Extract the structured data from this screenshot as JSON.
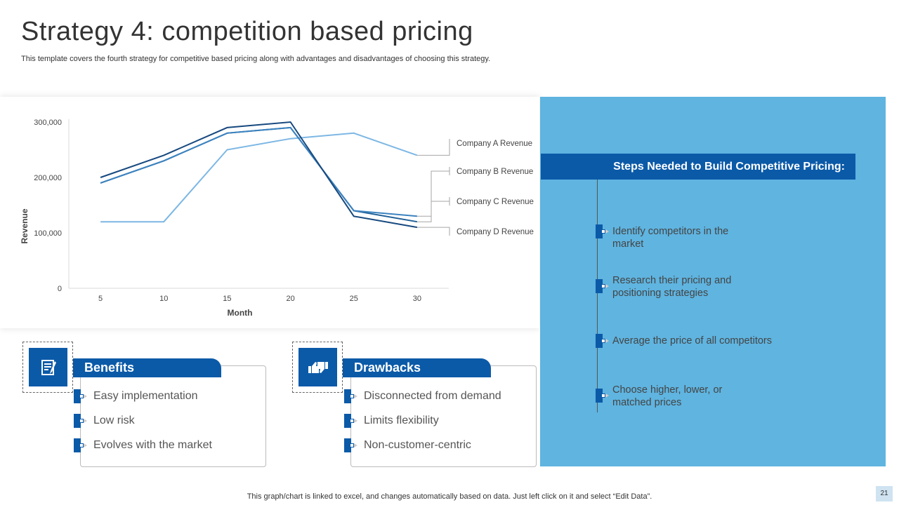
{
  "header": {
    "title": "Strategy 4: competition based pricing",
    "subtitle": "This template covers the fourth strategy for competitive based pricing along with advantages and disadvantages of choosing this strategy."
  },
  "chart_data": {
    "type": "line",
    "x": [
      5,
      10,
      15,
      20,
      25,
      30
    ],
    "xlabel": "Month",
    "ylabel": "Revenue",
    "ylim": [
      0,
      300000
    ],
    "yticks": [
      0,
      100000,
      200000,
      300000
    ],
    "ytick_labels": [
      "0",
      "100,000",
      "200,000",
      "300,000"
    ],
    "xtick_labels": [
      "5",
      "10",
      "15",
      "20",
      "25",
      "30"
    ],
    "grid": false,
    "legend_position": "right",
    "series": [
      {
        "name": "Company A Revenue",
        "values": [
          120000,
          120000,
          250000,
          270000,
          280000,
          240000
        ],
        "color": "#7db7e4"
      },
      {
        "name": "Company B Revenue",
        "values": [
          190000,
          230000,
          280000,
          290000,
          140000,
          120000
        ],
        "color": "#1f5f97"
      },
      {
        "name": "Company C Revenue",
        "values": [
          190000,
          230000,
          280000,
          290000,
          140000,
          130000
        ],
        "color": "#3c83c0"
      },
      {
        "name": "Company D Revenue",
        "values": [
          200000,
          240000,
          290000,
          300000,
          130000,
          110000
        ],
        "color": "#17497f"
      }
    ]
  },
  "steps": {
    "header": "Steps Needed to Build Competitive Pricing:",
    "items": [
      {
        "text": "Identify competitors in the market"
      },
      {
        "text": "Research their pricing and positioning strategies"
      },
      {
        "text": "Average the price of all competitors"
      },
      {
        "text": "Choose higher, lower, or matched prices"
      }
    ]
  },
  "benefits": {
    "title": "Benefits",
    "icon": "checklist-icon",
    "items": [
      "Easy implementation",
      "Low risk",
      "Evolves with the market"
    ]
  },
  "drawbacks": {
    "title": "Drawbacks",
    "icon": "thumbs-up-down-icon",
    "items": [
      "Disconnected from demand",
      "Limits flexibility",
      "Non-customer-centric"
    ]
  },
  "footer": {
    "note": "This graph/chart is linked to excel,  and changes automatically based on data. Just left click on it and select “Edit Data”.",
    "page_number": "21"
  },
  "colors": {
    "accent": "#0b5aa8",
    "panel": "#5fb4e0"
  }
}
